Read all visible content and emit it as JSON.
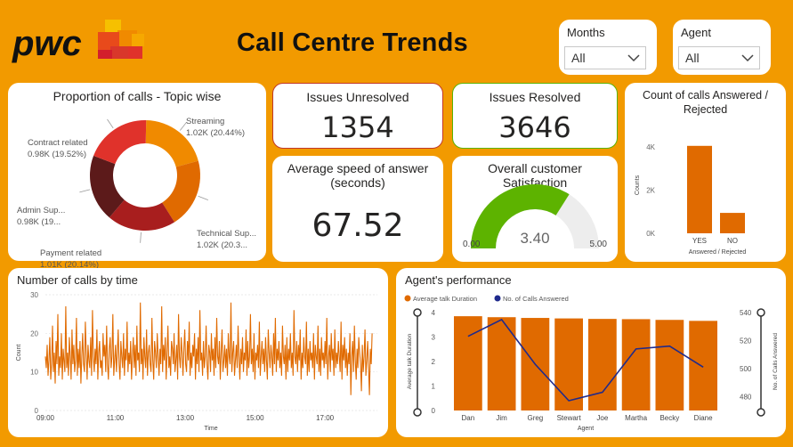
{
  "header": {
    "title": "Call Centre Trends",
    "logo_text": "pwc"
  },
  "slicers": {
    "months": {
      "label": "Months",
      "value": "All"
    },
    "agent": {
      "label": "Agent",
      "value": "All"
    }
  },
  "kpis": {
    "unresolved": {
      "label": "Issues Unresolved",
      "value": "1354"
    },
    "resolved": {
      "label": "Issues Resolved",
      "value": "3646"
    },
    "avg_speed": {
      "label": "Average speed of answer (seconds)",
      "value": "67.52"
    },
    "satisfaction": {
      "label": "Overall customer Satisfaction",
      "value": "3.40",
      "min": "0.00",
      "max": "5.00",
      "fraction": 0.68
    }
  },
  "colors": {
    "background": "#F29A00",
    "bar_orange": "#E06A00",
    "line_navy": "#1F2A8C",
    "gauge_green": "#5DB300",
    "unresolved_border": "#C0392B",
    "resolved_border": "#5DB300"
  },
  "chart_data": [
    {
      "id": "topic",
      "type": "pie",
      "title": "Proportion of calls - Topic wise",
      "slices": [
        {
          "label": "Streaming",
          "value_label": "1.02K (20.44%)",
          "value": 20.44,
          "color": "#F08A00"
        },
        {
          "label": "Technical Sup...",
          "value_label": "1.02K (20.3...",
          "value": 20.3,
          "color": "#E06A00"
        },
        {
          "label": "Payment related",
          "value_label": "1.01K (20.14%)",
          "value": 20.14,
          "color": "#A81E1E"
        },
        {
          "label": "Admin Sup...",
          "value_label": "0.98K (19...",
          "value": 19.6,
          "color": "#5C1A1A"
        },
        {
          "label": "Contract related",
          "value_label": "0.98K (19.52%)",
          "value": 19.52,
          "color": "#E0322B"
        }
      ]
    },
    {
      "id": "answered",
      "type": "bar",
      "title": "Count of calls Answered / Rejected",
      "categories": [
        "YES",
        "NO"
      ],
      "values": [
        4054,
        946
      ],
      "xlabel": "Answered / Rejected",
      "ylabel": "Counts",
      "yticks": [
        "0K",
        "2K",
        "4K"
      ],
      "ylim": [
        0,
        4500
      ]
    },
    {
      "id": "calls_time",
      "type": "line",
      "title": "Number of calls by time",
      "xlabel": "Time",
      "ylabel": "Count",
      "xticks": [
        "09:00",
        "11:00",
        "13:00",
        "15:00",
        "17:00"
      ],
      "yticks": [
        "0",
        "10",
        "20",
        "30"
      ],
      "ylim": [
        0,
        30
      ],
      "x_start_hour": 9,
      "x_end_hour": 18.5,
      "values": [
        14,
        11,
        17,
        9,
        13,
        19,
        8,
        12,
        22,
        10,
        15,
        7,
        18,
        12,
        25,
        9,
        14,
        11,
        20,
        8,
        16,
        13,
        10,
        27,
        11,
        15,
        9,
        19,
        14,
        8,
        21,
        12,
        17,
        10,
        13,
        24,
        9,
        16,
        11,
        18,
        7,
        14,
        20,
        12,
        10,
        23,
        15,
        8,
        17,
        13,
        11,
        19,
        9,
        26,
        14,
        10,
        16,
        12,
        21,
        8,
        15,
        18,
        11,
        13,
        9,
        20,
        14,
        17,
        10,
        22,
        12,
        8,
        16,
        19,
        11,
        14,
        25,
        9,
        13,
        17,
        10,
        15,
        21,
        12,
        8,
        18,
        14,
        11,
        20,
        9,
        16,
        13,
        23,
        10,
        15,
        12,
        18,
        8,
        14,
        19,
        11,
        17,
        9,
        22,
        13,
        15,
        10,
        28,
        12,
        16,
        8,
        19,
        14,
        11,
        21,
        9,
        15,
        17,
        12,
        10,
        24,
        13,
        8,
        18,
        15,
        11,
        20,
        14,
        9,
        16,
        12,
        27,
        10,
        17,
        13,
        19,
        8,
        15,
        22,
        11,
        14,
        9,
        18,
        16,
        12,
        20,
        10,
        13,
        17,
        8,
        25,
        14,
        11,
        19,
        15,
        9,
        16,
        21,
        12,
        10,
        18,
        13,
        23,
        9,
        15,
        11,
        17,
        14,
        20,
        8,
        16,
        12,
        19,
        10,
        26,
        13,
        15,
        9,
        18,
        11,
        14,
        22,
        12,
        8,
        17,
        15,
        10,
        20,
        13,
        16,
        9,
        19,
        11,
        24,
        14,
        12,
        18,
        8,
        15,
        21,
        10,
        13,
        17,
        11,
        16,
        9,
        20,
        14,
        12,
        28,
        10,
        15,
        18,
        9,
        13,
        17,
        11,
        22,
        14,
        8,
        16,
        12,
        19,
        10,
        15,
        13,
        21,
        9,
        18,
        11,
        14,
        25,
        12,
        16,
        10,
        20,
        8,
        15,
        13,
        17,
        11,
        23,
        9,
        14,
        18,
        12,
        16,
        10,
        19,
        13,
        8,
        21,
        15,
        11,
        17,
        14,
        9,
        20,
        12,
        24,
        10,
        16,
        13,
        18,
        11,
        15,
        9,
        22,
        14,
        12,
        17,
        8,
        19,
        10,
        16,
        13,
        20,
        11,
        15,
        9,
        26,
        14,
        12,
        18,
        10,
        17,
        13,
        21,
        8,
        15,
        11,
        19,
        14,
        12,
        23,
        9,
        16,
        10,
        18,
        13,
        15,
        11,
        20,
        8,
        17,
        14,
        12,
        22,
        10,
        16,
        9,
        19,
        13,
        15,
        11,
        18,
        12,
        24,
        8,
        14,
        17,
        10,
        20,
        13,
        16,
        9,
        21,
        11,
        15,
        12,
        18,
        14,
        10,
        23,
        8,
        17,
        13,
        19,
        11,
        16,
        9,
        15,
        12,
        20,
        4,
        14,
        18,
        10,
        22,
        13,
        8,
        16,
        11,
        19,
        15,
        12,
        5,
        17,
        10,
        14,
        21,
        9,
        13,
        18,
        11,
        4,
        16,
        12,
        20
      ]
    },
    {
      "id": "agents",
      "type": "bar",
      "title": "Agent's performance",
      "categories": [
        "Dan",
        "Jim",
        "Greg",
        "Stewart",
        "Joe",
        "Martha",
        "Becky",
        "Diane"
      ],
      "series": [
        {
          "name": "Average talk Duration",
          "values": [
            3.85,
            3.81,
            3.78,
            3.76,
            3.74,
            3.73,
            3.7,
            3.66
          ],
          "color": "#E06A00",
          "axis": "left"
        },
        {
          "name": "No. of Calls Answered",
          "values": [
            523,
            535,
            503,
            477,
            483,
            514,
            516,
            501
          ],
          "color": "#1F2A8C",
          "axis": "right"
        }
      ],
      "xlabel": "Agent",
      "ylabel_left": "Average talk Duration",
      "ylabel_right": "No. of Calls Answered",
      "yticks_left": [
        "0",
        "1",
        "2",
        "3",
        "4"
      ],
      "ylim_left": [
        0,
        4
      ],
      "yticks_right": [
        "480",
        "500",
        "520",
        "540"
      ],
      "ylim_right": [
        470,
        540
      ]
    }
  ]
}
